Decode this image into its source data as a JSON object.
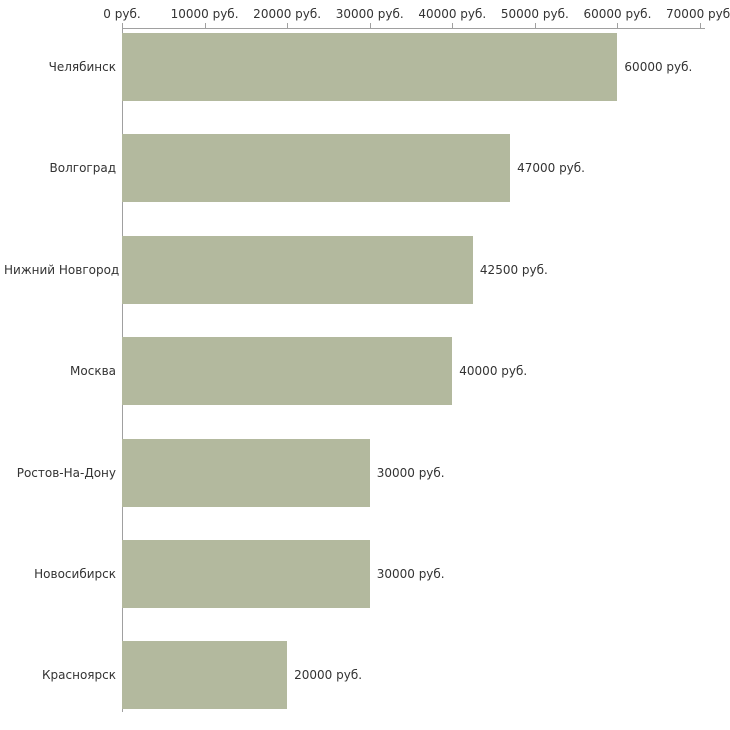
{
  "chart_data": {
    "type": "bar",
    "orientation": "horizontal",
    "title": "",
    "xlabel": "",
    "ylabel": "",
    "categories": [
      "Челябинск",
      "Волгоград",
      "Нижний Новгород",
      "Москва",
      "Ростов-На-Дону",
      "Новосибирск",
      "Красноярск"
    ],
    "values": [
      60000,
      47000,
      42500,
      40000,
      30000,
      30000,
      20000
    ],
    "value_labels": [
      "60000 руб.",
      "47000 руб.",
      "42500 руб.",
      "40000 руб.",
      "30000 руб.",
      "30000 руб.",
      "20000 руб."
    ],
    "x_ticks": [
      0,
      10000,
      20000,
      30000,
      40000,
      50000,
      60000,
      70000
    ],
    "x_tick_labels": [
      "0 руб.",
      "10000 руб.",
      "20000 руб.",
      "30000 руб.",
      "40000 руб.",
      "50000 руб.",
      "60000 руб.",
      "70000 руб."
    ],
    "xlim": [
      0,
      70000
    ],
    "grid": false,
    "legend": "none",
    "bar_color": "#b3b99e",
    "axis_color": "#a0a0a0",
    "text_color": "#333333"
  }
}
